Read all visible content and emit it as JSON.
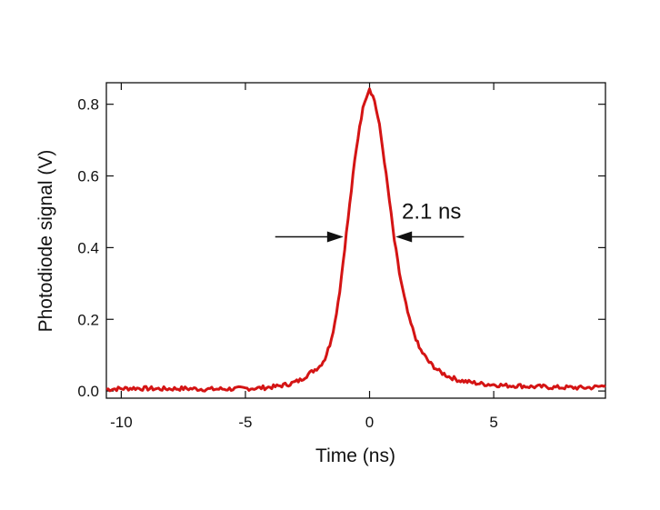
{
  "chart_data": {
    "type": "line",
    "xlabel": "Time (ns)",
    "ylabel": "Photodiode signal (V)",
    "xlim": [
      -10.6,
      9.5
    ],
    "ylim": [
      -0.02,
      0.86
    ],
    "x_ticks": [
      -10,
      -5,
      0,
      5
    ],
    "y_ticks": [
      0.0,
      0.2,
      0.4,
      0.6,
      0.8
    ],
    "x_tick_labels": [
      "-10",
      "-5",
      "0",
      "5"
    ],
    "y_tick_labels": [
      "0.0",
      "0.2",
      "0.4",
      "0.6",
      "0.8"
    ],
    "grid": false,
    "series": [
      {
        "color": "#d41414",
        "x": [
          -10.6,
          -9.5,
          -8.5,
          -7.5,
          -6.5,
          -5.5,
          -4.5,
          -3.8,
          -3.2,
          -2.8,
          -2.4,
          -2.0,
          -1.8,
          -1.6,
          -1.4,
          -1.2,
          -1.0,
          -0.8,
          -0.6,
          -0.4,
          -0.2,
          0.0,
          0.2,
          0.4,
          0.6,
          0.8,
          1.0,
          1.2,
          1.4,
          1.6,
          1.8,
          2.0,
          2.4,
          2.8,
          3.2,
          3.6,
          4.0,
          4.5,
          5.0,
          5.5,
          6.0,
          6.5,
          7.0,
          7.5,
          8.0,
          8.5,
          9.0,
          9.5
        ],
        "y": [
          0.005,
          0.008,
          0.006,
          0.007,
          0.005,
          0.006,
          0.008,
          0.012,
          0.02,
          0.03,
          0.05,
          0.07,
          0.09,
          0.13,
          0.19,
          0.28,
          0.4,
          0.52,
          0.64,
          0.74,
          0.81,
          0.845,
          0.81,
          0.74,
          0.64,
          0.53,
          0.42,
          0.33,
          0.26,
          0.2,
          0.16,
          0.12,
          0.08,
          0.055,
          0.04,
          0.03,
          0.025,
          0.02,
          0.018,
          0.015,
          0.015,
          0.012,
          0.012,
          0.01,
          0.01,
          0.009,
          0.01,
          0.015
        ]
      }
    ],
    "annotations": [
      {
        "text": "2.1 ns",
        "y": 0.43,
        "x_left": -1.05,
        "x_right": 1.05,
        "arrow_left_from": -3.8,
        "arrow_right_from": 3.8
      }
    ]
  }
}
